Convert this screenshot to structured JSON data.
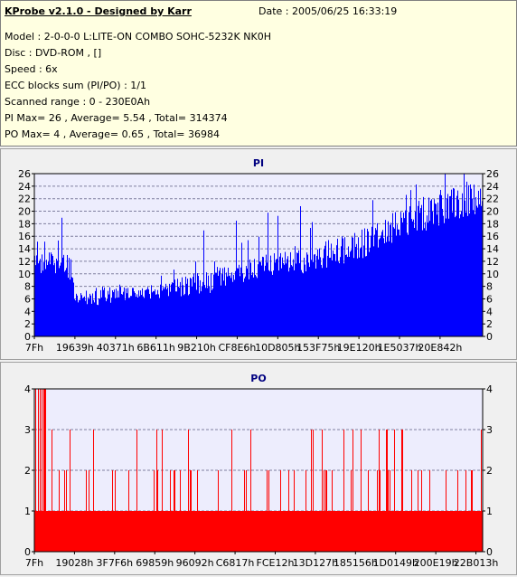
{
  "header": {
    "app_title": "KProbe v2.1.0 - Designed by Karr",
    "date": "Date : 2005/06/25 16:33:19",
    "lines": [
      "Model : 2-0-0-0 L:LITE-ON COMBO SOHC-5232K NK0H",
      "Disc : DVD-ROM ,  []",
      "Speed : 6x",
      "ECC blocks sum (PI/PO) : 1/1",
      "Scanned range : 0 - 230E0Ah",
      "PI Max= 26 , Average= 5.54 , Total= 314374",
      "PO Max= 4 , Average= 0.65 , Total= 36984"
    ]
  },
  "colors": {
    "pi": "#0000ff",
    "po": "#ff0000",
    "grid": "#7f7f9f",
    "title": "#000080",
    "plot_bg": "#ededfd"
  },
  "chart_data": [
    {
      "type": "bar",
      "title": "PI",
      "ylim": [
        0,
        26
      ],
      "yticks": [
        0,
        2,
        4,
        6,
        8,
        10,
        12,
        14,
        16,
        18,
        20,
        22,
        24,
        26
      ],
      "xtick_labels": [
        "7Fh",
        "19639h",
        "40371h",
        "6B611h",
        "9B210h",
        "CF8E6h",
        "10D805h",
        "153F75h",
        "19E120h",
        "1E5037h",
        "20E842h"
      ],
      "grid": true,
      "x_start": "7Fh",
      "x_end": "230E0Ah",
      "max": 26,
      "average": 5.54,
      "total": 314374,
      "profile": [
        [
          0,
          9,
          13
        ],
        [
          0.04,
          10,
          14
        ],
        [
          0.08,
          9,
          13
        ],
        [
          0.09,
          5,
          7
        ],
        [
          0.15,
          5,
          8
        ],
        [
          0.25,
          6,
          8
        ],
        [
          0.3,
          6,
          9
        ],
        [
          0.4,
          7,
          11
        ],
        [
          0.5,
          9,
          13
        ],
        [
          0.6,
          10,
          14
        ],
        [
          0.72,
          12,
          17
        ],
        [
          0.8,
          15,
          20
        ],
        [
          0.88,
          17,
          23
        ],
        [
          0.96,
          19,
          25
        ],
        [
          1,
          19,
          24
        ]
      ]
    },
    {
      "type": "bar",
      "title": "PO",
      "ylim": [
        0,
        4
      ],
      "yticks": [
        0,
        1,
        2,
        3,
        4
      ],
      "xtick_labels": [
        "7Fh",
        "19028h",
        "3F7F6h",
        "69859h",
        "96092h",
        "C6817h",
        "FCE12h",
        "13D127h",
        "185156h",
        "1D0149h",
        "200E19h",
        "22B013h"
      ],
      "grid": true,
      "x_start": "7Fh",
      "x_end": "230E0Ah",
      "max": 4,
      "average": 0.65,
      "total": 36984,
      "base_level": 1,
      "spike_levels": [
        2,
        3,
        4
      ]
    }
  ]
}
